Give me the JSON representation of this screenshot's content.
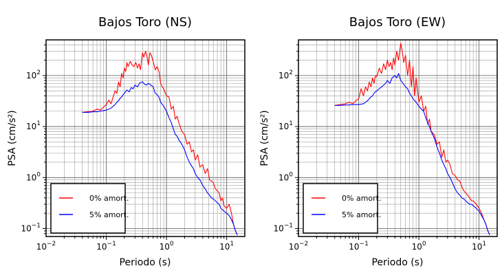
{
  "chart_data": [
    {
      "type": "line",
      "title": "Bajos Toro (NS)",
      "xlabel": "Periodo (s)",
      "ylabel": "PSA (cm/s²)",
      "xscale": "log",
      "yscale": "log",
      "xlim": [
        0.01,
        20
      ],
      "ylim": [
        0.07,
        500
      ],
      "grid": true,
      "legend_position": "bottom-left",
      "x_ticks": [
        {
          "value": 0.01,
          "base": "10",
          "exp": "−2"
        },
        {
          "value": 0.1,
          "base": "10",
          "exp": "−1"
        },
        {
          "value": 1,
          "base": "10",
          "exp": "0"
        },
        {
          "value": 10,
          "base": "10",
          "exp": "1"
        }
      ],
      "y_ticks": [
        {
          "value": 0.1,
          "base": "10",
          "exp": "−1"
        },
        {
          "value": 1,
          "base": "10",
          "exp": "0"
        },
        {
          "value": 10,
          "base": "10",
          "exp": "1"
        },
        {
          "value": 100,
          "base": "10",
          "exp": "2"
        }
      ],
      "series": [
        {
          "name": "0% amort.",
          "color": "#ff0000",
          "x": [
            0.04,
            0.05,
            0.06,
            0.07,
            0.08,
            0.09,
            0.1,
            0.11,
            0.12,
            0.13,
            0.14,
            0.15,
            0.16,
            0.17,
            0.18,
            0.19,
            0.2,
            0.21,
            0.22,
            0.23,
            0.25,
            0.27,
            0.29,
            0.31,
            0.33,
            0.35,
            0.37,
            0.4,
            0.42,
            0.45,
            0.48,
            0.5,
            0.53,
            0.56,
            0.6,
            0.65,
            0.7,
            0.75,
            0.8,
            0.85,
            0.9,
            1.0,
            1.1,
            1.2,
            1.3,
            1.4,
            1.5,
            1.6,
            1.8,
            2.0,
            2.2,
            2.4,
            2.6,
            2.8,
            3.0,
            3.3,
            3.6,
            4.0,
            4.4,
            4.8,
            5.2,
            5.6,
            6.0,
            6.5,
            7.0,
            7.5,
            8.0,
            8.5,
            9.0,
            10,
            11,
            12,
            13,
            14,
            15
          ],
          "values": [
            19,
            19.5,
            20,
            22,
            21,
            24,
            27,
            33,
            28,
            38,
            50,
            45,
            75,
            60,
            110,
            90,
            140,
            120,
            180,
            150,
            190,
            160,
            150,
            180,
            140,
            170,
            130,
            280,
            230,
            300,
            220,
            160,
            280,
            250,
            190,
            130,
            150,
            120,
            70,
            60,
            55,
            40,
            38,
            22,
            25,
            14,
            16,
            12,
            8,
            7,
            4.5,
            5,
            3.2,
            3.5,
            2.2,
            2.8,
            1.6,
            1.8,
            1.2,
            1.5,
            0.9,
            0.85,
            0.8,
            0.6,
            0.55,
            0.5,
            0.35,
            0.4,
            0.28,
            0.25,
            0.3,
            0.2,
            0.12,
            0.09,
            0.075
          ]
        },
        {
          "name": "5% amort.",
          "color": "#0000ff",
          "x": [
            0.04,
            0.05,
            0.06,
            0.07,
            0.08,
            0.09,
            0.1,
            0.11,
            0.12,
            0.13,
            0.14,
            0.15,
            0.16,
            0.17,
            0.18,
            0.19,
            0.2,
            0.22,
            0.24,
            0.26,
            0.28,
            0.3,
            0.33,
            0.36,
            0.4,
            0.43,
            0.46,
            0.5,
            0.55,
            0.6,
            0.65,
            0.7,
            0.75,
            0.8,
            0.9,
            1.0,
            1.1,
            1.2,
            1.3,
            1.4,
            1.5,
            1.6,
            1.8,
            2.0,
            2.2,
            2.4,
            2.6,
            2.8,
            3.0,
            3.3,
            3.6,
            4.0,
            4.4,
            4.8,
            5.2,
            5.6,
            6.0,
            6.5,
            7.0,
            7.5,
            8.0,
            9.0,
            10,
            11,
            12,
            13,
            14,
            15
          ],
          "values": [
            19,
            19,
            19.5,
            19.5,
            20,
            20.5,
            21,
            22,
            23,
            25,
            27,
            30,
            32,
            36,
            38,
            42,
            45,
            52,
            48,
            58,
            55,
            65,
            60,
            72,
            75,
            68,
            65,
            70,
            65,
            60,
            45,
            42,
            38,
            30,
            25,
            20,
            15,
            12,
            9,
            7,
            6.5,
            5.5,
            4.5,
            3.5,
            2.5,
            2.0,
            1.7,
            1.5,
            1.2,
            1.0,
            0.9,
            0.7,
            0.6,
            0.5,
            0.45,
            0.4,
            0.38,
            0.35,
            0.32,
            0.3,
            0.25,
            0.22,
            0.2,
            0.18,
            0.15,
            0.12,
            0.09,
            0.075
          ]
        }
      ]
    },
    {
      "type": "line",
      "title": "Bajos Toro (EW)",
      "xlabel": "Periodo (s)",
      "ylabel": "PSA (cm/s²)",
      "xscale": "log",
      "yscale": "log",
      "xlim": [
        0.01,
        20
      ],
      "ylim": [
        0.07,
        500
      ],
      "grid": true,
      "legend_position": "bottom-left",
      "x_ticks": [
        {
          "value": 0.01,
          "base": "10",
          "exp": "−2"
        },
        {
          "value": 0.1,
          "base": "10",
          "exp": "−1"
        },
        {
          "value": 1,
          "base": "10",
          "exp": "0"
        },
        {
          "value": 10,
          "base": "10",
          "exp": "1"
        }
      ],
      "y_ticks": [
        {
          "value": 0.1,
          "base": "10",
          "exp": "−1"
        },
        {
          "value": 1,
          "base": "10",
          "exp": "0"
        },
        {
          "value": 10,
          "base": "10",
          "exp": "1"
        },
        {
          "value": 100,
          "base": "10",
          "exp": "2"
        }
      ],
      "series": [
        {
          "name": "0% amort.",
          "color": "#ff0000",
          "x": [
            0.04,
            0.05,
            0.06,
            0.07,
            0.08,
            0.09,
            0.1,
            0.11,
            0.12,
            0.13,
            0.14,
            0.15,
            0.16,
            0.17,
            0.18,
            0.19,
            0.2,
            0.22,
            0.24,
            0.26,
            0.28,
            0.3,
            0.32,
            0.34,
            0.36,
            0.38,
            0.4,
            0.43,
            0.46,
            0.5,
            0.53,
            0.56,
            0.6,
            0.65,
            0.7,
            0.75,
            0.8,
            0.85,
            0.9,
            1.0,
            1.1,
            1.2,
            1.3,
            1.4,
            1.5,
            1.6,
            1.8,
            2.0,
            2.2,
            2.4,
            2.6,
            2.8,
            3.0,
            3.3,
            3.6,
            4.0,
            4.4,
            4.8,
            5.2,
            5.6,
            6.0,
            6.5,
            7.0,
            7.5,
            8.0,
            9.0,
            10,
            11,
            12,
            13,
            14,
            15
          ],
          "values": [
            26,
            27,
            28,
            30,
            28,
            32,
            35,
            55,
            40,
            60,
            50,
            75,
            60,
            90,
            70,
            100,
            95,
            140,
            110,
            170,
            130,
            200,
            150,
            180,
            130,
            220,
            160,
            300,
            200,
            430,
            300,
            180,
            250,
            100,
            200,
            60,
            150,
            40,
            90,
            30,
            40,
            20,
            25,
            11,
            14,
            8,
            7,
            4.5,
            5,
            2.5,
            3.5,
            2.0,
            2.2,
            1.8,
            1.2,
            1.1,
            0.9,
            0.85,
            0.65,
            0.55,
            0.5,
            0.45,
            0.4,
            0.35,
            0.35,
            0.3,
            0.25,
            0.2,
            0.15,
            0.12,
            0.09,
            0.075
          ]
        },
        {
          "name": "5% amort.",
          "color": "#0000ff",
          "x": [
            0.04,
            0.05,
            0.06,
            0.07,
            0.08,
            0.09,
            0.1,
            0.11,
            0.12,
            0.13,
            0.14,
            0.15,
            0.16,
            0.17,
            0.18,
            0.19,
            0.2,
            0.22,
            0.24,
            0.26,
            0.28,
            0.3,
            0.33,
            0.36,
            0.4,
            0.43,
            0.46,
            0.5,
            0.55,
            0.6,
            0.65,
            0.7,
            0.75,
            0.8,
            0.9,
            1.0,
            1.1,
            1.2,
            1.3,
            1.4,
            1.5,
            1.6,
            1.8,
            2.0,
            2.2,
            2.4,
            2.6,
            2.8,
            3.0,
            3.3,
            3.6,
            4.0,
            4.4,
            4.8,
            5.2,
            5.6,
            6.0,
            6.5,
            7.0,
            7.5,
            8.0,
            9.0,
            10,
            11,
            12,
            13,
            14,
            15
          ],
          "values": [
            26,
            26,
            26.5,
            26.5,
            27,
            27,
            27,
            27.5,
            28,
            30,
            32,
            35,
            38,
            40,
            45,
            48,
            50,
            55,
            60,
            65,
            70,
            80,
            70,
            90,
            100,
            90,
            110,
            80,
            70,
            60,
            55,
            45,
            40,
            35,
            30,
            25,
            22,
            20,
            15,
            12,
            10,
            8,
            6,
            4,
            3,
            2.2,
            1.8,
            1.5,
            1.2,
            1.0,
            0.8,
            0.6,
            0.5,
            0.45,
            0.4,
            0.38,
            0.35,
            0.32,
            0.3,
            0.3,
            0.28,
            0.25,
            0.22,
            0.18,
            0.15,
            0.12,
            0.09,
            0.075
          ]
        }
      ]
    }
  ]
}
